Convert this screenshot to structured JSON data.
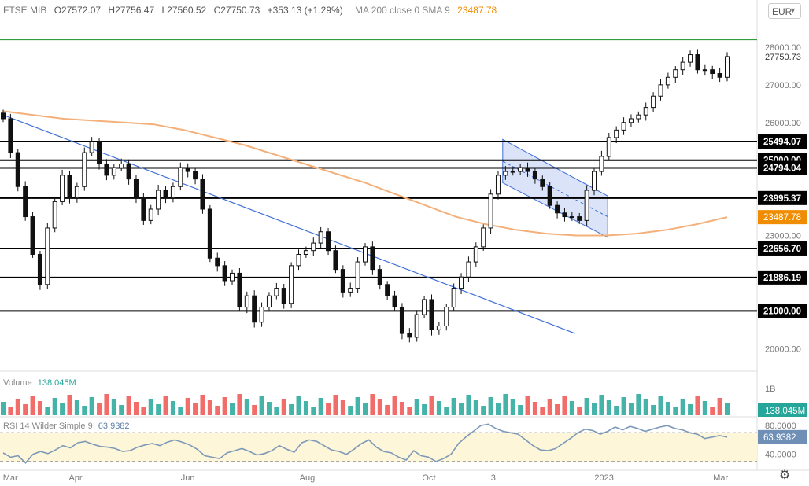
{
  "header": {
    "symbol": "FTSE MIB",
    "open": "O27572.07",
    "high": "H27756.47",
    "low": "L27560.52",
    "close": "C27750.73",
    "change": "+353.13 (+1.29%)",
    "ma_label": "MA 200 close 0 SMA 9",
    "ma_value": "23487.78"
  },
  "currency": "EUR",
  "volume_label": "Volume",
  "volume_value": "138.045M",
  "volume_axis": "1B",
  "rsi_label": "RSI 14 Wilder Simple 9",
  "rsi_value": "63.9382",
  "colors": {
    "up": "#26a69a",
    "down": "#ef5350",
    "ma": "#f4b07a",
    "ma_label": "#f08c00",
    "trendline": "#3f6fd8",
    "channel_fill": "#cfd9f7",
    "target_line": "#2e9e3e",
    "rsi_line": "#7d98b8",
    "rsi_band": "#fdf6d8"
  },
  "chart_data": [
    {
      "type": "candlestick",
      "title": "FTSE MIB",
      "y_ticks": [
        "28000.00",
        "27000.00",
        "26000.00",
        "25000.00",
        "24000.00",
        "23000.00",
        "22000.00",
        "21000.00",
        "20000.00"
      ],
      "ylim": [
        19400,
        28500
      ],
      "x_ticks": [
        "Mar",
        "Apr",
        "Jun",
        "Aug",
        "Oct",
        "3",
        "2023",
        "Mar"
      ],
      "last_price": "27750.73",
      "levels": [
        {
          "label": "25494.07",
          "value": 25494.07
        },
        {
          "label": "25000.00",
          "value": 25000
        },
        {
          "label": "24794.04",
          "value": 24794.04
        },
        {
          "label": "23995.37",
          "value": 23995.37
        },
        {
          "label": "22656.70",
          "value": 22656.7
        },
        {
          "label": "21886.19",
          "value": 21886.19
        },
        {
          "label": "21000.00",
          "value": 21000
        }
      ],
      "target_level": 28200,
      "ma200_label": "23487.78",
      "ma200": [
        26300,
        26200,
        26100,
        26050,
        26000,
        25950,
        25800,
        25600,
        25400,
        25150,
        24900,
        24650,
        24400,
        24100,
        23800,
        23500,
        23300,
        23150,
        23050,
        23000,
        23000,
        23050,
        23150,
        23300,
        23487.78
      ],
      "trendline": {
        "start": [
          0,
          26200
        ],
        "end": [
          0.79,
          20400
        ]
      },
      "channel": {
        "upper": [
          [
            0.69,
            25550
          ],
          [
            0.835,
            24050
          ]
        ],
        "lower": [
          [
            0.69,
            24400
          ],
          [
            0.835,
            22950
          ]
        ]
      },
      "closes": [
        26100,
        25200,
        24300,
        23500,
        22500,
        21700,
        23200,
        23900,
        24600,
        24000,
        24300,
        25200,
        25500,
        24900,
        24600,
        24800,
        24900,
        24500,
        24000,
        23400,
        23700,
        24200,
        24000,
        24300,
        24800,
        24700,
        24500,
        23700,
        22400,
        22200,
        21800,
        22000,
        21100,
        21400,
        20700,
        21100,
        21400,
        21600,
        21200,
        22200,
        22500,
        22600,
        22800,
        23100,
        22600,
        22100,
        21500,
        21600,
        22300,
        22700,
        22100,
        21700,
        21400,
        21100,
        20400,
        20300,
        20900,
        21300,
        20500,
        20600,
        21100,
        21600,
        21900,
        22300,
        22700,
        23200,
        24100,
        24600,
        24700,
        24700,
        24800,
        24700,
        24500,
        24300,
        23800,
        23600,
        23500,
        23500,
        23400,
        24200,
        24700,
        25100,
        25600,
        25800,
        26000,
        26100,
        26200,
        26400,
        26700,
        27000,
        27200,
        27400,
        27600,
        27800,
        27400,
        27400,
        27300,
        27200,
        27750
      ]
    },
    {
      "type": "bar",
      "title": "Volume",
      "y_ticks": [
        "1B"
      ],
      "last_value": "138.045M"
    },
    {
      "type": "line",
      "title": "RSI 14 Wilder Simple 9",
      "y_ticks": [
        "80.0000",
        "40.0000"
      ],
      "ylim": [
        20,
        90
      ],
      "last_value": "63.9382",
      "values": [
        42,
        36,
        38,
        28,
        40,
        44,
        41,
        46,
        52,
        49,
        56,
        58,
        54,
        51,
        50,
        48,
        44,
        45,
        50,
        53,
        55,
        52,
        57,
        60,
        57,
        53,
        47,
        38,
        36,
        34,
        42,
        45,
        48,
        44,
        39,
        41,
        45,
        52,
        47,
        43,
        56,
        60,
        58,
        52,
        46,
        44,
        40,
        47,
        55,
        60,
        50,
        44,
        42,
        36,
        32,
        45,
        38,
        36,
        30,
        34,
        40,
        55,
        64,
        72,
        80,
        82,
        76,
        72,
        70,
        68,
        60,
        52,
        46,
        45,
        48,
        55,
        62,
        70,
        75,
        73,
        68,
        72,
        78,
        74,
        79,
        76,
        72,
        75,
        78,
        80,
        76,
        74,
        70,
        68,
        62,
        64,
        66,
        63.94
      ]
    }
  ]
}
